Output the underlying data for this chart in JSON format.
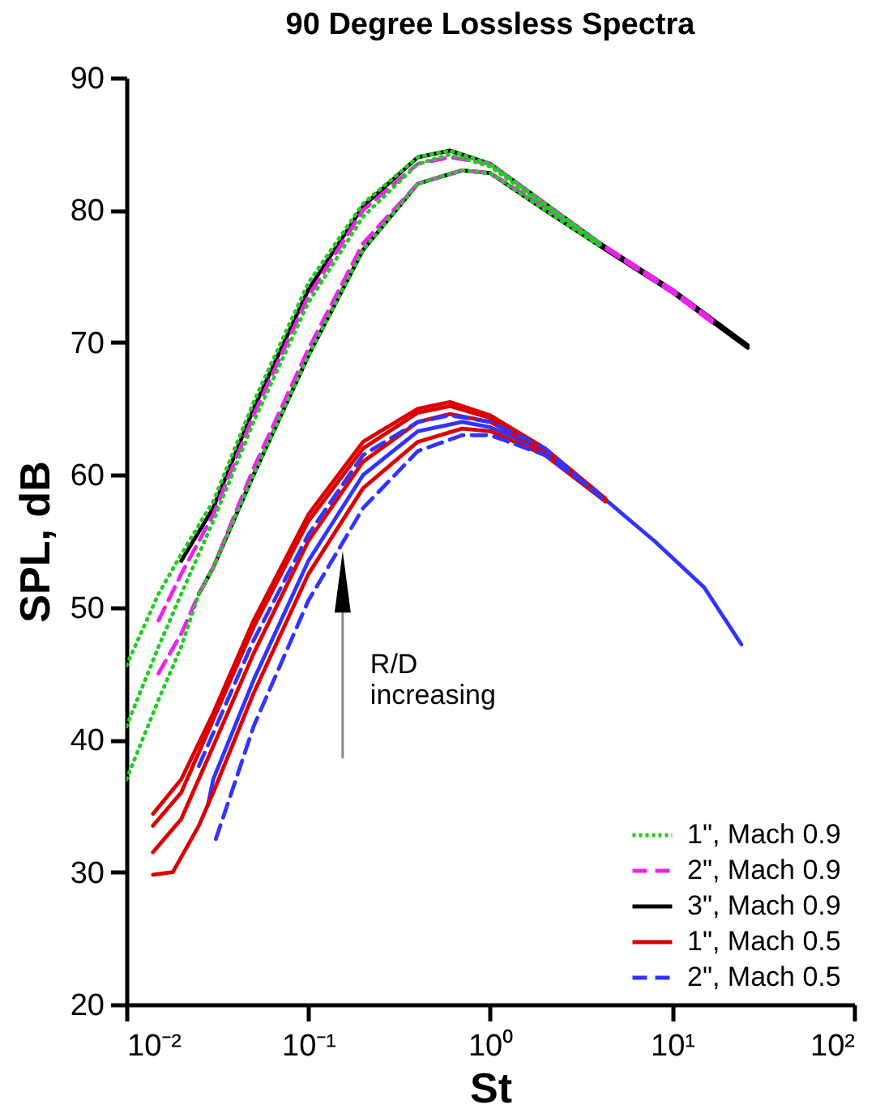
{
  "chart_data": {
    "type": "line",
    "title": "90 Degree Lossless Spectra",
    "xlabel": "St",
    "ylabel": "SPL, dB",
    "log": "x",
    "xlim": [
      0.01,
      100
    ],
    "xticks": [
      {
        "value": 0.01,
        "label": "10⁻²"
      },
      {
        "value": 0.1,
        "label": "10⁻¹"
      },
      {
        "value": 1,
        "label": "10⁰"
      },
      {
        "value": 10,
        "label": "10¹"
      },
      {
        "value": 100,
        "label": "10²"
      }
    ],
    "ylim": [
      20,
      90
    ],
    "yticks": [
      20,
      30,
      40,
      50,
      60,
      70,
      80,
      90
    ],
    "grid": false,
    "legend": "bottom right",
    "annotations": [
      "R/D\nincreasing"
    ],
    "series": [
      {
        "name": "1\", Mach 0.9",
        "color": "#22cc22",
        "line_style": "dotted",
        "x": [
          0.01,
          0.015,
          0.02,
          0.03,
          0.05,
          0.1,
          0.2,
          0.4,
          0.6,
          1,
          2,
          4
        ],
        "values": [
          45.6,
          51,
          54,
          58,
          65.5,
          74.5,
          80.5,
          84,
          84.5,
          83.5,
          80.5,
          77.5
        ]
      },
      {
        "color": "#22cc22",
        "line_style": "dotted",
        "x": [
          0.01,
          0.015,
          0.02,
          0.03,
          0.05,
          0.1,
          0.2,
          0.4,
          0.6,
          1,
          2,
          4
        ],
        "values": [
          41,
          47,
          51,
          56.5,
          64,
          73,
          79.5,
          83.5,
          84.2,
          83.3,
          80.3,
          77.4
        ]
      },
      {
        "color": "#22cc22",
        "line_style": "dotted",
        "x": [
          0.01,
          0.015,
          0.02,
          0.025,
          0.03,
          0.05,
          0.1,
          0.2,
          0.4,
          0.7,
          1,
          2,
          4
        ],
        "values": [
          37,
          43,
          47,
          51,
          53,
          60,
          69,
          77,
          82,
          83,
          82.8,
          80,
          77.3
        ]
      },
      {
        "name": "2\", Mach 0.9",
        "color": "#ee22ee",
        "line_style": "dashed",
        "x": [
          0.015,
          0.02,
          0.03,
          0.05,
          0.1,
          0.2,
          0.4,
          0.6,
          1,
          2,
          4,
          10,
          17
        ],
        "values": [
          49,
          52.5,
          57,
          64.5,
          73.5,
          80,
          83.5,
          84,
          83.5,
          80.5,
          77.5,
          74,
          71.6
        ]
      },
      {
        "color": "#ee22ee",
        "line_style": "dashed",
        "x": [
          0.015,
          0.02,
          0.025,
          0.03,
          0.05,
          0.1,
          0.2,
          0.4,
          0.7,
          1,
          2,
          4,
          10,
          17
        ],
        "values": [
          45,
          48,
          51,
          53,
          60.5,
          69.5,
          77.5,
          82,
          83,
          82.8,
          80.2,
          77.4,
          73.8,
          71.4
        ]
      },
      {
        "name": "3\", Mach 0.9",
        "color": "#000000",
        "line_style": "solid",
        "x": [
          0.02,
          0.03,
          0.05,
          0.1,
          0.2,
          0.4,
          0.6,
          1,
          2,
          4,
          10,
          26
        ],
        "values": [
          53.5,
          57.5,
          65,
          74,
          80.3,
          84,
          84.5,
          83.5,
          80.5,
          77.5,
          74,
          69.8
        ]
      },
      {
        "color": "#000000",
        "line_style": "solid",
        "x": [
          0.025,
          0.03,
          0.05,
          0.1,
          0.2,
          0.4,
          0.7,
          1,
          2,
          4,
          10,
          26
        ],
        "values": [
          51,
          53,
          60,
          69,
          77,
          82,
          83,
          82.8,
          80,
          77.3,
          73.8,
          69.6
        ]
      },
      {
        "name": "1\", Mach 0.5",
        "color": "#dd0000",
        "line_style": "solid",
        "x": [
          0.014,
          0.02,
          0.03,
          0.05,
          0.1,
          0.2,
          0.4,
          0.6,
          1,
          2,
          4.3
        ],
        "values": [
          34.4,
          37,
          42,
          49,
          57,
          62.5,
          65,
          65.5,
          64.5,
          62,
          58.2
        ]
      },
      {
        "color": "#dd0000",
        "line_style": "solid",
        "x": [
          0.014,
          0.02,
          0.03,
          0.05,
          0.1,
          0.2,
          0.4,
          0.6,
          1,
          2,
          4.3
        ],
        "values": [
          33.5,
          36,
          41.5,
          48.5,
          56.5,
          62,
          64.7,
          65.2,
          64.3,
          61.9,
          58.1
        ]
      },
      {
        "color": "#dd0000",
        "line_style": "solid",
        "x": [
          0.014,
          0.02,
          0.03,
          0.05,
          0.1,
          0.2,
          0.4,
          0.6,
          1,
          2,
          4.3
        ],
        "values": [
          31.5,
          34,
          39.5,
          46.5,
          55,
          61,
          64,
          64.6,
          64,
          61.8,
          58
        ]
      },
      {
        "color": "#dd0000",
        "line_style": "solid",
        "x": [
          0.014,
          0.018,
          0.025,
          0.03,
          0.05,
          0.1,
          0.2,
          0.4,
          0.7,
          1,
          2,
          4.3
        ],
        "values": [
          29.8,
          30,
          33.5,
          36,
          43.5,
          52.5,
          59,
          62.5,
          63.5,
          63.3,
          61.5,
          58
        ]
      },
      {
        "name": "2\", Mach 0.5",
        "color": "#3333ff",
        "line_style": "dashed",
        "x": [
          0.025,
          0.03,
          0.05,
          0.1,
          0.2,
          0.4,
          0.6,
          1,
          2,
          4.3
        ],
        "values": [
          38,
          40.5,
          47.5,
          55.5,
          61.5,
          64,
          64.5,
          64,
          62,
          58
        ]
      },
      {
        "color": "#3333ff",
        "line_style": "solid",
        "x": [
          0.028,
          0.03,
          0.05,
          0.1,
          0.2,
          0.4,
          0.7,
          1,
          2,
          4,
          8,
          15,
          24
        ],
        "values": [
          35,
          37,
          44.5,
          53.5,
          60,
          63.3,
          64,
          63.6,
          61.8,
          58.5,
          55,
          51.5,
          47.2
        ]
      },
      {
        "color": "#3333ff",
        "line_style": "dashed",
        "x": [
          0.031,
          0.04,
          0.05,
          0.1,
          0.2,
          0.4,
          0.7,
          1,
          2,
          4
        ],
        "values": [
          32.5,
          37,
          41,
          50.5,
          57.5,
          61.8,
          63,
          63,
          61.5,
          58.5
        ]
      }
    ]
  }
}
